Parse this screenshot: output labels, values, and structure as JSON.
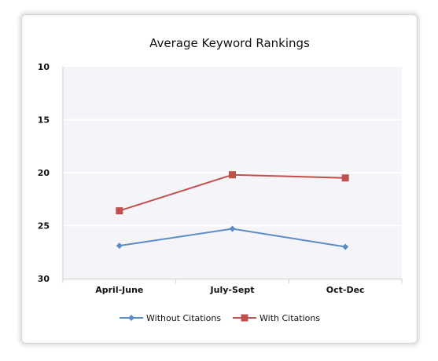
{
  "chart_data": {
    "type": "line",
    "title": "Average Keyword Rankings",
    "xlabel": "",
    "ylabel": "",
    "categories": [
      "April-June",
      "July-Sept",
      "Oct-Dec"
    ],
    "y_ticks": [
      "10",
      "15",
      "20",
      "25",
      "30"
    ],
    "ylim": [
      10,
      30
    ],
    "y_reversed": true,
    "grid": "horizontal",
    "legend_position": "bottom",
    "series": [
      {
        "name": "Without Citations",
        "values": [
          26.9,
          25.3,
          27.0
        ],
        "color": "#5b8cc5",
        "marker": "diamond"
      },
      {
        "name": "With Citations",
        "values": [
          23.6,
          20.2,
          20.5
        ],
        "color": "#c0504d",
        "marker": "square"
      }
    ]
  }
}
